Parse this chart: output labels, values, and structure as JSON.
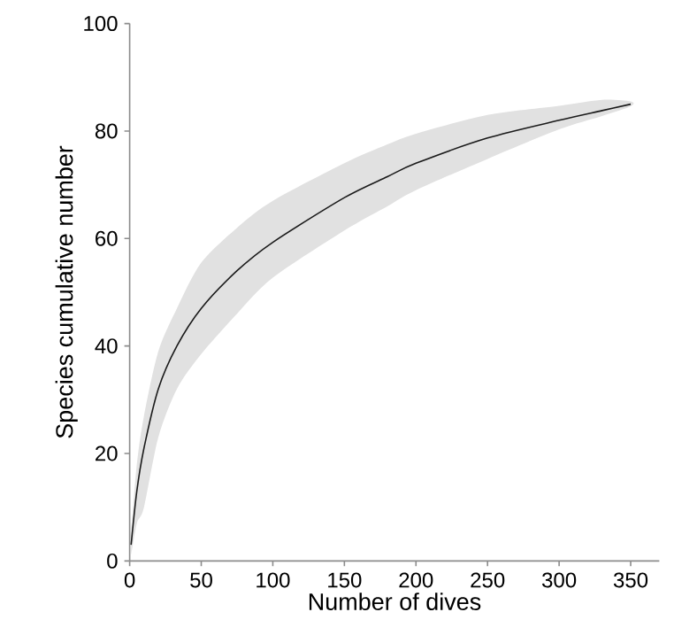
{
  "chart_data": {
    "type": "line",
    "xlabel": "Number of dives",
    "ylabel": "Species cumulative number",
    "xlim": [
      0,
      370
    ],
    "ylim": [
      0,
      100
    ],
    "xticks": [
      0,
      50,
      100,
      150,
      200,
      250,
      300,
      350
    ],
    "yticks": [
      0,
      20,
      40,
      60,
      80,
      100
    ],
    "series": [
      {
        "color": "#1a1a1a",
        "x": [
          1,
          5,
          10,
          20,
          33,
          50,
          75,
          100,
          150,
          180,
          200,
          250,
          300,
          330,
          350
        ],
        "values": [
          3,
          13,
          21,
          32,
          40,
          47,
          54,
          59.3,
          67.6,
          71.5,
          74,
          78.7,
          82,
          83.8,
          85
        ],
        "lower": [
          1,
          7,
          10,
          23,
          32,
          38.5,
          46,
          52.7,
          61.5,
          66,
          69,
          74.8,
          80.3,
          82.8,
          84.6
        ],
        "upper": [
          5,
          18,
          27,
          39,
          47,
          55.5,
          62,
          67,
          74,
          77.5,
          79.5,
          83,
          84.7,
          85.8,
          85.5
        ]
      }
    ]
  }
}
